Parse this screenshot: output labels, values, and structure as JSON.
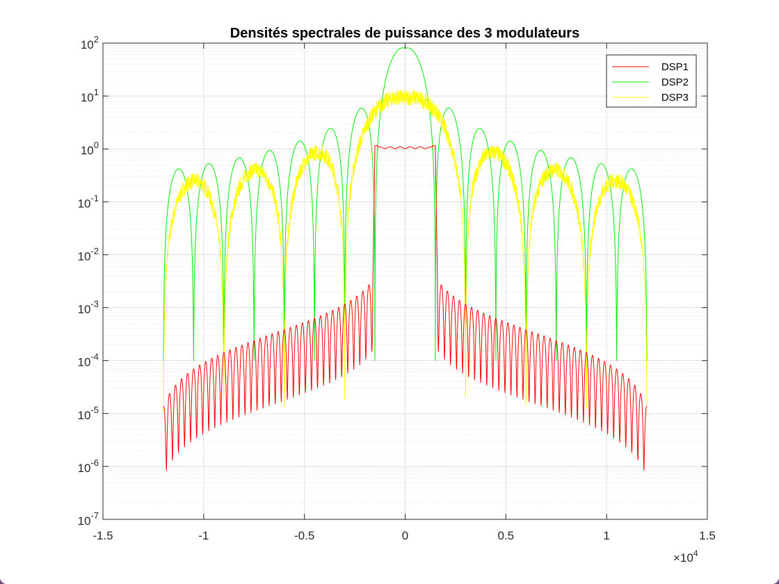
{
  "chart_data": {
    "type": "line",
    "title": "Densités spectrales de puissance des 3 modulateurs",
    "xlabel": "",
    "ylabel": "",
    "x_scale": "linear",
    "y_scale": "log",
    "xlim": [
      -15000,
      15000
    ],
    "ylim": [
      1e-07,
      100
    ],
    "x_ticks": [
      -15000,
      -10000,
      -5000,
      0,
      5000,
      10000,
      15000
    ],
    "x_tick_labels": [
      "-1.5",
      "-1",
      "-0.5",
      "0",
      "0.5",
      "1",
      "1.5"
    ],
    "x_exponent_base": "×10",
    "x_exponent_power": "4",
    "y_ticks": [
      1e-07,
      1e-06,
      1e-05,
      0.0001,
      0.001,
      0.01,
      0.1,
      1,
      10,
      100
    ],
    "y_tick_labels": [
      {
        "base": "10",
        "exp": "-7"
      },
      {
        "base": "10",
        "exp": "-6"
      },
      {
        "base": "10",
        "exp": "-5"
      },
      {
        "base": "10",
        "exp": "-4"
      },
      {
        "base": "10",
        "exp": "-3"
      },
      {
        "base": "10",
        "exp": "-2"
      },
      {
        "base": "10",
        "exp": "-1"
      },
      {
        "base": "10",
        "exp": "0"
      },
      {
        "base": "10",
        "exp": "1"
      },
      {
        "base": "10",
        "exp": "2"
      }
    ],
    "grid": true,
    "minor_grid": true,
    "legend_position": "top-right",
    "x_range": [
      -12000,
      12000
    ],
    "series": [
      {
        "name": "DSP1",
        "color": "#ff0000",
        "model": "srrc",
        "rate": 3000,
        "rolloff": 0.0,
        "amplitude": 1.1,
        "floor_center": 0.004,
        "floor_edge": 1.35e-05,
        "floor_power": 1.8,
        "ripple_freq": 300,
        "null_depth": 0.045,
        "flat_ripple": 0.08
      },
      {
        "name": "DSP2",
        "color": "#00ee00",
        "model": "sinc2",
        "first_null": 1500,
        "peak": 80,
        "floor": 0.0001,
        "decay": 1.5
      },
      {
        "name": "DSP3",
        "color": "#ffff00",
        "model": "sinc2_noisy",
        "first_null": 3000,
        "peak": 9,
        "floor": 1.5e-05,
        "decay": 1.2,
        "noise": 0.35
      }
    ]
  }
}
